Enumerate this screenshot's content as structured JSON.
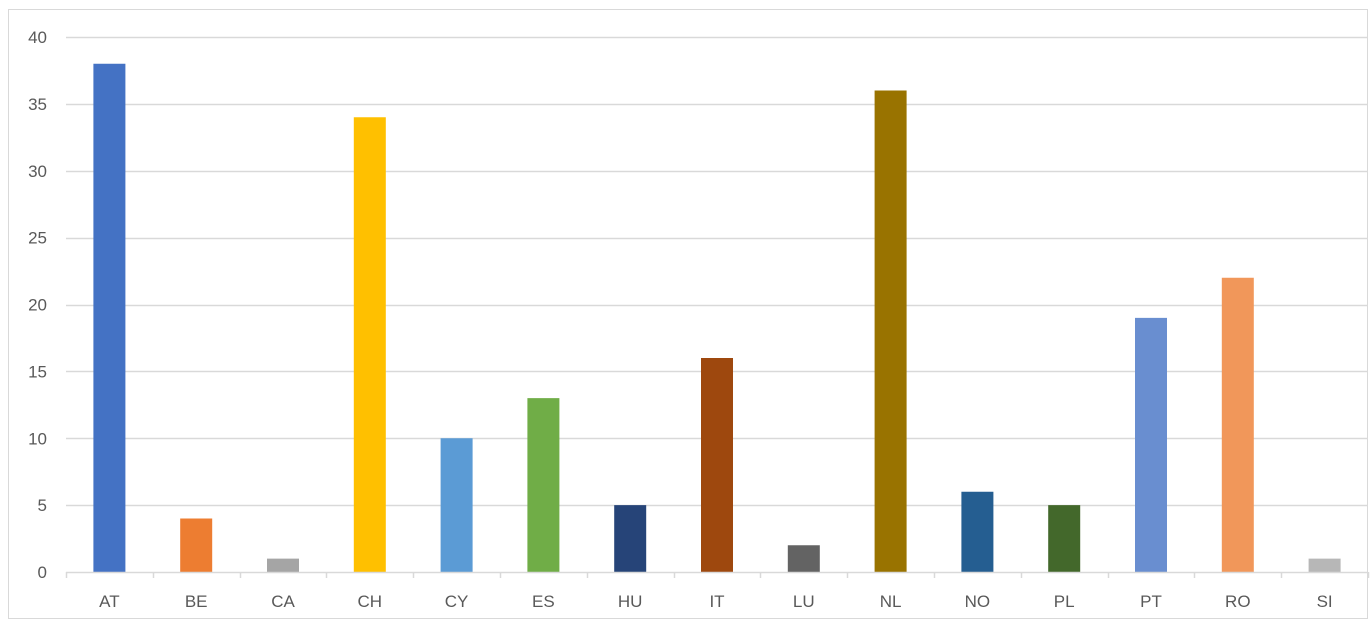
{
  "chart_data": {
    "type": "bar",
    "title": "",
    "xlabel": "",
    "ylabel": "",
    "categories": [
      "AT",
      "BE",
      "CA",
      "CH",
      "CY",
      "ES",
      "HU",
      "IT",
      "LU",
      "NL",
      "NO",
      "PL",
      "PT",
      "RO",
      "SI"
    ],
    "values": [
      38,
      4,
      1,
      34,
      10,
      13,
      5,
      16,
      2,
      36,
      6,
      5,
      19,
      22,
      1
    ],
    "colors": [
      "#4472c4",
      "#ed7d31",
      "#a5a5a5",
      "#ffc000",
      "#5b9bd5",
      "#70ad47",
      "#264478",
      "#9e480e",
      "#636363",
      "#997300",
      "#255e91",
      "#43682b",
      "#698ed0",
      "#f1975a",
      "#b7b7b7"
    ],
    "ylim": [
      0,
      40
    ],
    "yticks": [
      0,
      5,
      10,
      15,
      20,
      25,
      30,
      35,
      40
    ],
    "grid": true,
    "legend": "none"
  }
}
